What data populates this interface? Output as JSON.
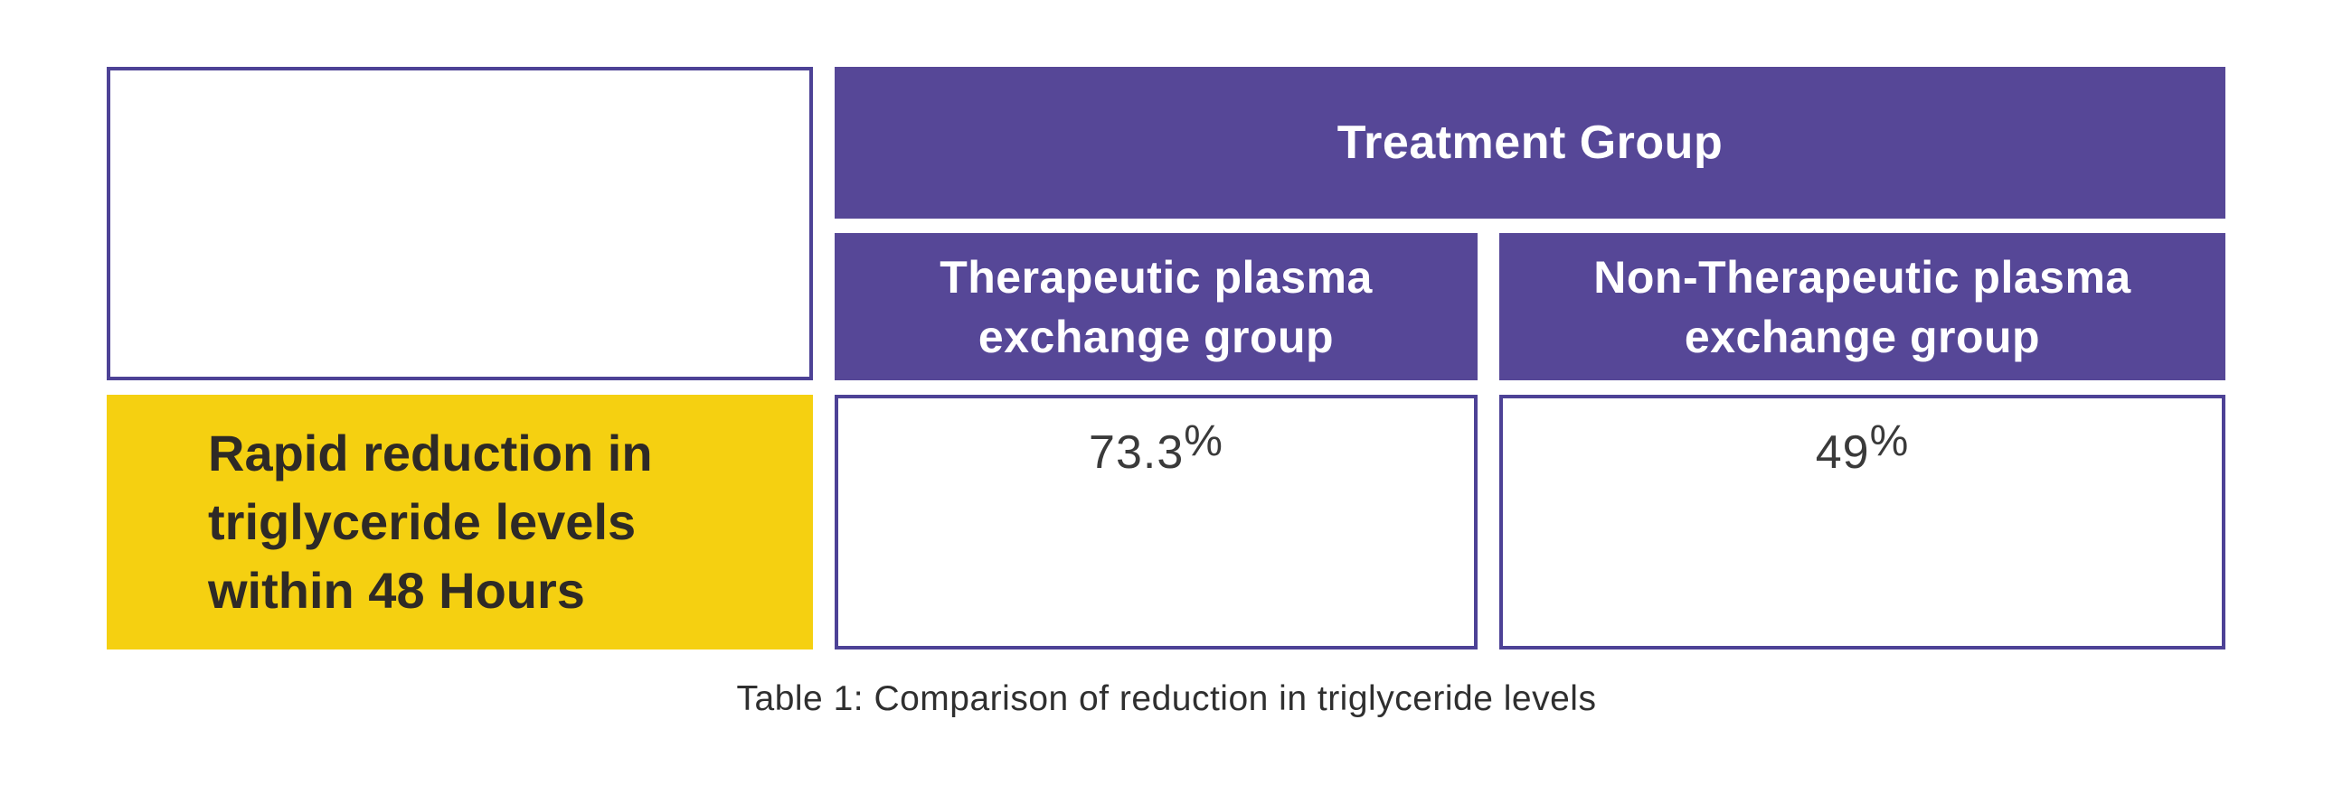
{
  "chart_data": {
    "type": "table",
    "title": "Table 1: Comparison of reduction in triglyceride levels",
    "column_group_header": "Treatment Group",
    "columns": [
      "Therapeutic plasma exchange group",
      "Non-Therapeutic plasma exchange group"
    ],
    "rows": [
      {
        "label": "Rapid reduction in triglyceride levels within 48 Hours",
        "values": [
          "73.3%",
          "49%"
        ]
      }
    ]
  },
  "table": {
    "group_header": "Treatment Group",
    "col_headers": [
      {
        "lines": [
          "Therapeutic plasma",
          "exchange group"
        ]
      },
      {
        "lines": [
          "Non-Therapeutic plasma",
          "exchange group"
        ]
      }
    ],
    "data_row": {
      "label_lines": [
        "Rapid reduction in",
        "triglyceride levels",
        "within 48 Hours"
      ],
      "values": [
        {
          "number": "73.3",
          "unit": "%"
        },
        {
          "number": "49",
          "unit": "%"
        }
      ]
    },
    "caption": "Table 1: Comparison of reduction in triglyceride levels"
  },
  "colors": {
    "purple_fill": "#564797",
    "purple_border": "#4D4296",
    "yellow_fill": "#F5D011",
    "label_text": "#2E2A26",
    "value_text": "#3A3A3A",
    "caption_text": "#2F2F2F",
    "header_text": "#FFFFFF"
  }
}
